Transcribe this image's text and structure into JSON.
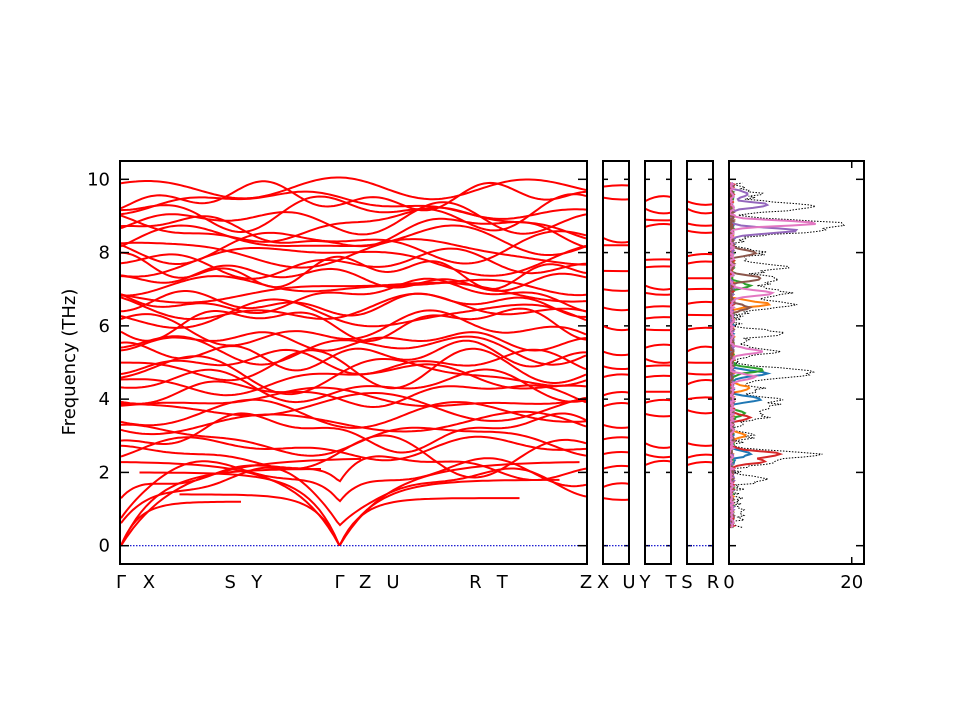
{
  "chart_data": {
    "type": "line",
    "ylabel": "Frequency (THz)",
    "ylim": [
      -0.5,
      10.5
    ],
    "yticks": [
      0,
      2,
      4,
      6,
      8,
      10
    ],
    "band_color": "#ff0000",
    "zero_line_color": "#0000cc",
    "panels": [
      {
        "id": "main",
        "x_range": [
          0,
          1
        ],
        "labels": [
          {
            "text": "Γ",
            "x": 0.0
          },
          {
            "text": "X",
            "x": 0.06
          },
          {
            "text": "S",
            "x": 0.235
          },
          {
            "text": "Y",
            "x": 0.292
          },
          {
            "text": "Γ",
            "x": 0.47
          },
          {
            "text": "Z",
            "x": 0.525
          },
          {
            "text": "U",
            "x": 0.585
          },
          {
            "text": "R",
            "x": 0.762
          },
          {
            "text": "T",
            "x": 0.82
          },
          {
            "text": "Z",
            "x": 1.0
          }
        ]
      },
      {
        "id": "XU",
        "labels": [
          {
            "text": "X",
            "x": 0.0
          },
          {
            "text": "U",
            "x": 1.0
          }
        ]
      },
      {
        "id": "YT",
        "labels": [
          {
            "text": "Y",
            "x": 0.0
          },
          {
            "text": "T",
            "x": 1.0
          }
        ]
      },
      {
        "id": "SR",
        "labels": [
          {
            "text": "S",
            "x": 0.0
          },
          {
            "text": "R",
            "x": 1.0
          }
        ]
      }
    ],
    "dos": {
      "xlim": [
        0,
        22
      ],
      "xticks": [
        0,
        20
      ],
      "total_color": "#000000",
      "projected": [
        {
          "color": "#1f77b4",
          "peaks": [
            [
              4.7,
              6
            ],
            [
              4.0,
              5
            ],
            [
              2.5,
              3
            ]
          ]
        },
        {
          "color": "#ff7f0e",
          "peaks": [
            [
              6.6,
              6
            ],
            [
              4.3,
              3
            ],
            [
              3.0,
              2
            ]
          ]
        },
        {
          "color": "#2ca02c",
          "peaks": [
            [
              4.8,
              5
            ],
            [
              7.1,
              3
            ],
            [
              3.6,
              2
            ]
          ]
        },
        {
          "color": "#d62728",
          "peaks": [
            [
              2.5,
              8
            ],
            [
              2.3,
              5
            ],
            [
              3.5,
              3
            ]
          ]
        },
        {
          "color": "#9467bd",
          "peaks": [
            [
              8.6,
              11
            ],
            [
              9.3,
              6
            ],
            [
              9.6,
              3
            ]
          ]
        },
        {
          "color": "#8c564b",
          "peaks": [
            [
              7.3,
              5
            ],
            [
              8.0,
              4
            ],
            [
              6.5,
              3
            ]
          ]
        },
        {
          "color": "#e377c2",
          "peaks": [
            [
              8.8,
              14
            ],
            [
              6.9,
              7
            ],
            [
              5.3,
              5
            ],
            [
              4.6,
              4
            ]
          ]
        }
      ]
    }
  }
}
